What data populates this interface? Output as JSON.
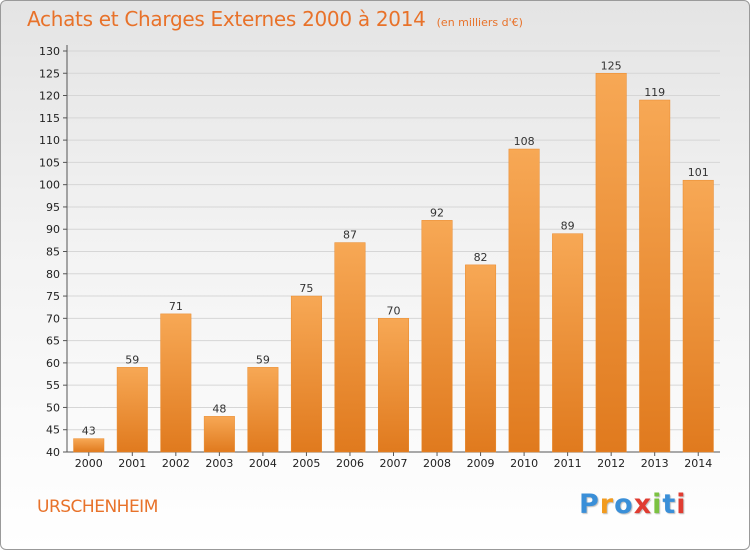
{
  "chart_data": {
    "type": "bar",
    "title": "Achats et Charges Externes 2000 à 2014",
    "subtitle": "(en milliers d'€)",
    "categories": [
      "2000",
      "2001",
      "2002",
      "2003",
      "2004",
      "2005",
      "2006",
      "2007",
      "2008",
      "2009",
      "2010",
      "2011",
      "2012",
      "2013",
      "2014"
    ],
    "values": [
      43,
      59,
      71,
      48,
      59,
      75,
      87,
      70,
      92,
      82,
      108,
      89,
      125,
      119,
      101
    ],
    "ylim": [
      40,
      130
    ],
    "yticks": [
      40,
      45,
      50,
      55,
      60,
      65,
      70,
      75,
      80,
      85,
      90,
      95,
      100,
      105,
      110,
      115,
      120,
      125,
      130
    ],
    "grid": true,
    "colors": {
      "bar_top": "#f7a855",
      "bar_bottom": "#e07a1e",
      "title": "#e8722a"
    }
  },
  "commune": "URSCHENHEIM",
  "logo": {
    "letters": [
      "P",
      "r",
      "o",
      "x",
      "i",
      "t",
      "i"
    ],
    "colors": [
      "#3a8fd8",
      "#f29b1e",
      "#3a8fd8",
      "#e03c31",
      "#7cc242",
      "#3a8fd8",
      "#e03c31"
    ]
  }
}
